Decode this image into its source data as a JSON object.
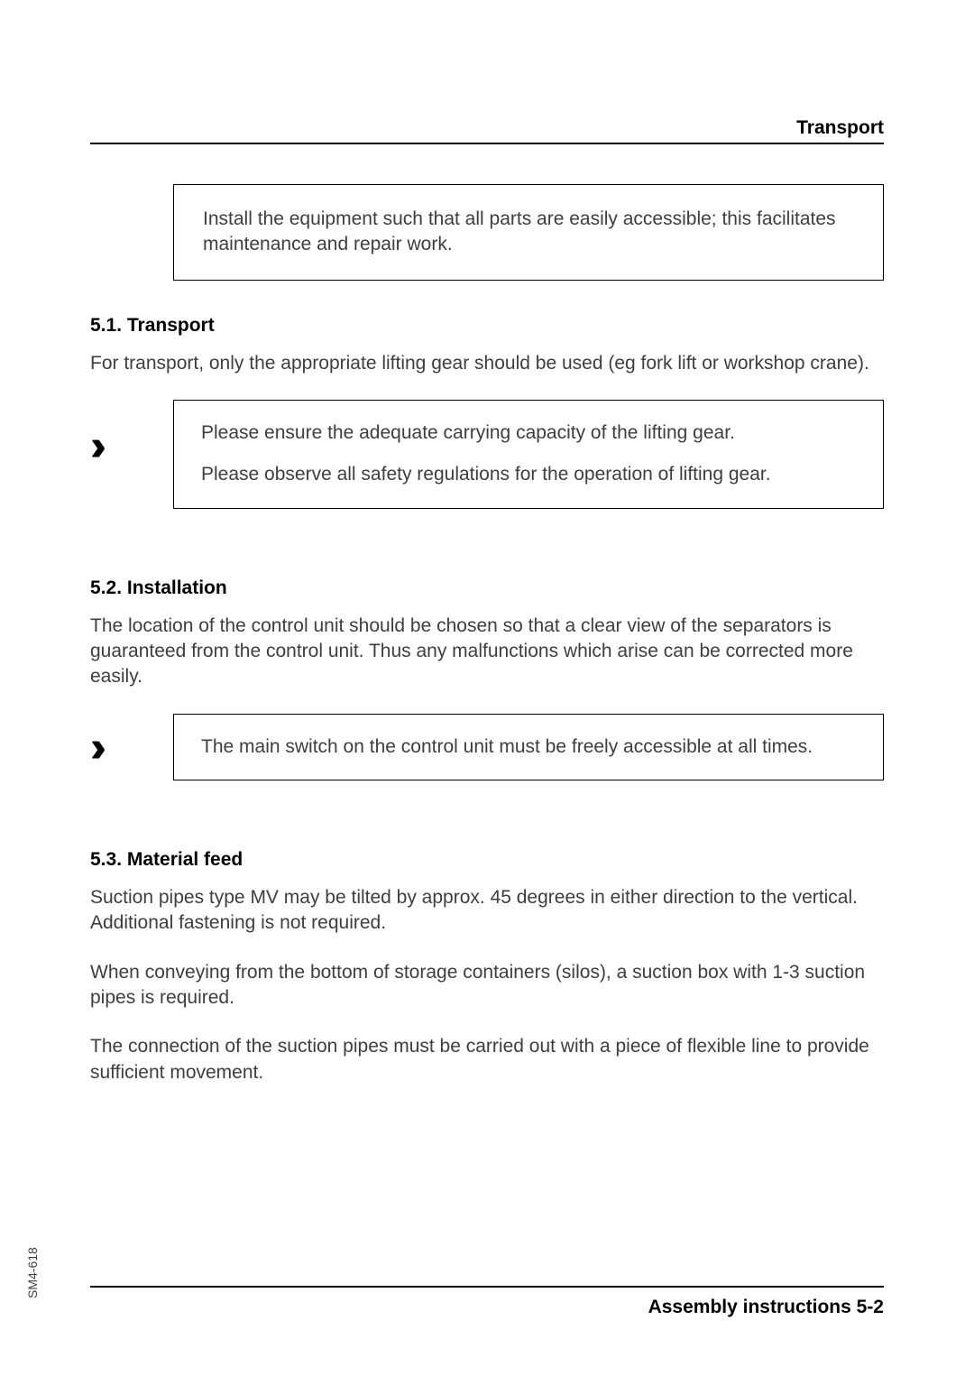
{
  "header": {
    "title": "Transport"
  },
  "intro_box": {
    "text": "Install the equipment such that all parts are easily accessible; this facilitates maintenance and repair work."
  },
  "sections": {
    "s51": {
      "title": "5.1. Transport",
      "body": "For transport, only the appropriate lifting gear should be used (eg fork lift or workshop crane).",
      "callout_p1": "Please ensure the adequate carrying capacity of the lifting gear.",
      "callout_p2": "Please observe all safety regulations for the operation of lifting gear."
    },
    "s52": {
      "title": "5.2. Installation",
      "body": "The location of the control unit should be chosen so that a clear view of the separators is guaranteed from the control unit. Thus any malfunctions which arise can be corrected more easily.",
      "callout": "The main switch on the control unit must be freely accessible at all times."
    },
    "s53": {
      "title": "5.3. Material feed",
      "p1": "Suction pipes type MV may be tilted by approx. 45 degrees in either direction to the vertical. Additional fastening is not required.",
      "p2": "When conveying from the bottom of storage containers (silos), a suction box with 1-3 suction pipes is required.",
      "p3": "The connection of the suction pipes must be carried out with a piece of flexible line to provide sufficient movement."
    }
  },
  "footer": {
    "text": "Assembly instructions 5-2"
  },
  "side_label": "SM4-618",
  "chevron_glyph": "››"
}
